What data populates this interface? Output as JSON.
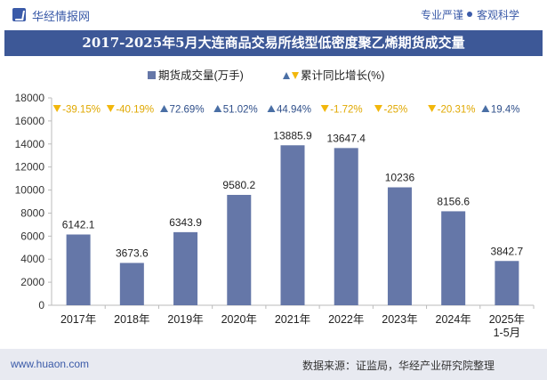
{
  "header": {
    "brand": "华经情报网",
    "tag_left": "专业严谨",
    "tag_right": "客观科学"
  },
  "chart_data": {
    "type": "bar",
    "title": "2017-2025年5月大连商品交易所线型低密度聚乙烯期货成交量",
    "categories": [
      "2017年",
      "2018年",
      "2019年",
      "2020年",
      "2021年",
      "2022年",
      "2023年",
      "2024年",
      "2025年 1-5月"
    ],
    "series": [
      {
        "name": "期货成交量(万手)",
        "values": [
          6142.1,
          3673.6,
          6343.9,
          9580.2,
          13885.9,
          13647.4,
          10236,
          8156.6,
          3842.7
        ],
        "color": "#6577a8"
      }
    ],
    "value_labels": [
      "6142.1",
      "3673.6",
      "6343.9",
      "9580.2",
      "13885.9",
      "13647.4",
      "10236",
      "8156.6",
      "3842.7"
    ],
    "growth": {
      "name": "累计同比增长(%)",
      "labels": [
        "-39.15%",
        "-40.19%",
        "72.69%",
        "51.02%",
        "44.94%",
        "-1.72%",
        "-25%",
        "-20.31%",
        "19.4%"
      ],
      "direction": [
        "down",
        "down",
        "up",
        "up",
        "up",
        "down",
        "down",
        "down",
        "up"
      ],
      "up_color": "#4a6fa5",
      "down_color": "#f2b70c"
    },
    "yticks": [
      "0",
      "2000",
      "4000",
      "6000",
      "8000",
      "10000",
      "12000",
      "14000",
      "16000",
      "18000"
    ],
    "ylim": [
      0,
      18000
    ],
    "grid": false,
    "legend_position": "top-center"
  },
  "footer": {
    "website": "www.huaon.com",
    "source": "数据来源：证监局，华经产业研究院整理"
  }
}
